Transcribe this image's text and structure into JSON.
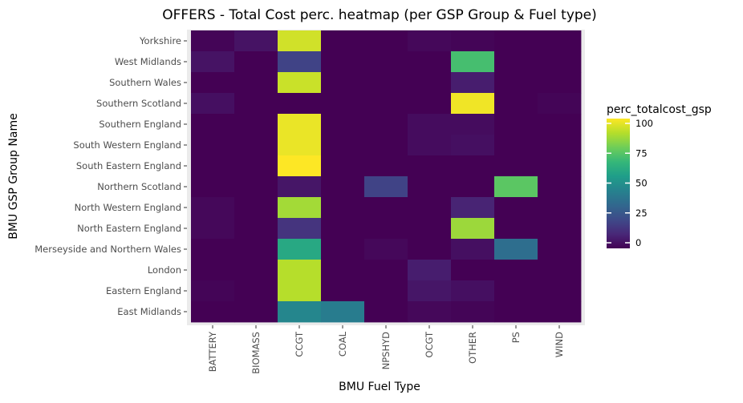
{
  "chart_data": {
    "type": "heatmap",
    "title": "OFFERS - Total Cost perc. heatmap (per GSP Group & Fuel type)",
    "xlabel": "BMU Fuel Type",
    "ylabel": "BMU GSP Group Name",
    "x_categories": [
      "BATTERY",
      "BIOMASS",
      "CCGT",
      "COAL",
      "NPSHYD",
      "OCGT",
      "OTHER",
      "PS",
      "WIND"
    ],
    "y_categories": [
      "Yorkshire",
      "West Midlands",
      "Southern Wales",
      "Southern Scotland",
      "Southern England",
      "South Western England",
      "South Eastern England",
      "Northern Scotland",
      "North Western England",
      "North Eastern England",
      "Merseyside and Northern Wales",
      "London",
      "Eastern England",
      "East Midlands"
    ],
    "values": [
      [
        1,
        5,
        93,
        0,
        0,
        2,
        1,
        0,
        0
      ],
      [
        5,
        0,
        20,
        0,
        0,
        0,
        70,
        0,
        0
      ],
      [
        0,
        0,
        92,
        0,
        0,
        0,
        8,
        0,
        0
      ],
      [
        4,
        0,
        0,
        0,
        0,
        0,
        98,
        0,
        1
      ],
      [
        0,
        0,
        97,
        0,
        0,
        3,
        3,
        0,
        0
      ],
      [
        0,
        0,
        97,
        0,
        0,
        3,
        4,
        0,
        0
      ],
      [
        0,
        0,
        100,
        0,
        0,
        0,
        0,
        0,
        0
      ],
      [
        0,
        0,
        6,
        0,
        20,
        0,
        0,
        74,
        0
      ],
      [
        2,
        0,
        86,
        0,
        0,
        0,
        10,
        0,
        0
      ],
      [
        2,
        0,
        15,
        0,
        0,
        0,
        85,
        0,
        0
      ],
      [
        0,
        0,
        60,
        0,
        2,
        0,
        4,
        36,
        0
      ],
      [
        0,
        0,
        89,
        0,
        0,
        8,
        0,
        0,
        0
      ],
      [
        1,
        0,
        89,
        0,
        0,
        6,
        4,
        0,
        0
      ],
      [
        0,
        0,
        46,
        42,
        0,
        2,
        1,
        0,
        0
      ]
    ],
    "legend": {
      "title": "perc_totalcost_gsp",
      "ticks": [
        0,
        25,
        50,
        75,
        100
      ],
      "range": [
        0,
        100
      ],
      "placement": "right"
    },
    "colormap": [
      "#440154",
      "#482878",
      "#3e4a89",
      "#31688e",
      "#26828e",
      "#1f9e89",
      "#35b779",
      "#6ece58",
      "#b5de2b",
      "#fde725"
    ],
    "panel_background": "#ebebeb",
    "grid": true
  }
}
